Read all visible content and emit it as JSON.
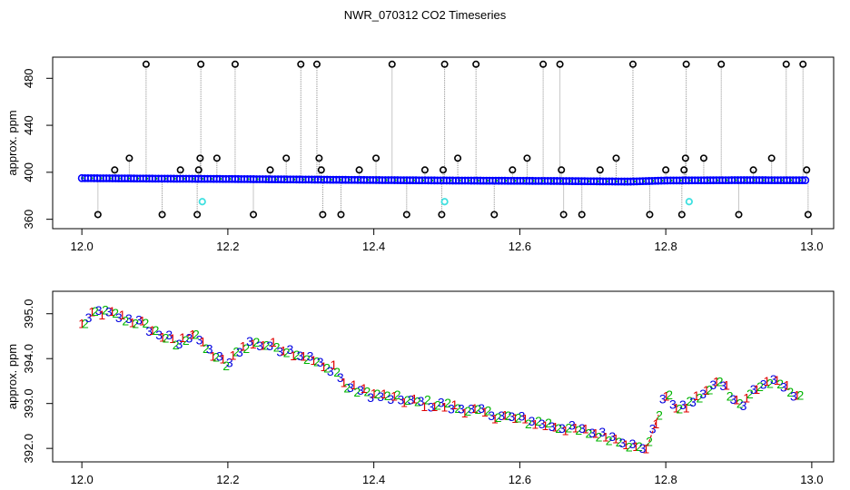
{
  "title": "NWR_070312  CO2 Timeseries",
  "chart_data": [
    {
      "type": "scatter",
      "title": "",
      "xlabel": "",
      "ylabel": "approx. ppm",
      "xlim": [
        11.96,
        13.03
      ],
      "ylim": [
        352,
        498
      ],
      "xticks": [
        12.0,
        12.2,
        12.4,
        12.6,
        12.8,
        13.0
      ],
      "xtick_labels": [
        "12.0",
        "12.2",
        "12.4",
        "12.6",
        "12.8",
        "13.0"
      ],
      "yticks": [
        360,
        400,
        440,
        480
      ],
      "ytick_labels": [
        "360",
        "400",
        "440",
        "480"
      ],
      "grid": false,
      "colors": {
        "main": "#0000ff",
        "inner": "#00b400",
        "outlier": "#000000",
        "calib": "#40e0e0",
        "spike": "#909090"
      },
      "baseline": [
        [
          12.0,
          395.0
        ],
        [
          12.1,
          394.6
        ],
        [
          12.2,
          394.3
        ],
        [
          12.35,
          393.6
        ],
        [
          12.5,
          393.0
        ],
        [
          12.65,
          392.6
        ],
        [
          12.75,
          392.1
        ],
        [
          12.8,
          393.0
        ],
        [
          12.9,
          393.3
        ],
        [
          13.0,
          393.2
        ]
      ],
      "outliers": [
        {
          "x": 12.022,
          "y": 364
        },
        {
          "x": 12.045,
          "y": 402
        },
        {
          "x": 12.065,
          "y": 412
        },
        {
          "x": 12.088,
          "y": 492
        },
        {
          "x": 12.11,
          "y": 364
        },
        {
          "x": 12.135,
          "y": 402
        },
        {
          "x": 12.158,
          "y": 364
        },
        {
          "x": 12.16,
          "y": 402
        },
        {
          "x": 12.162,
          "y": 412
        },
        {
          "x": 12.163,
          "y": 492
        },
        {
          "x": 12.185,
          "y": 412
        },
        {
          "x": 12.21,
          "y": 492
        },
        {
          "x": 12.235,
          "y": 364
        },
        {
          "x": 12.258,
          "y": 402
        },
        {
          "x": 12.28,
          "y": 412
        },
        {
          "x": 12.3,
          "y": 492
        },
        {
          "x": 12.322,
          "y": 492
        },
        {
          "x": 12.325,
          "y": 412
        },
        {
          "x": 12.328,
          "y": 402
        },
        {
          "x": 12.33,
          "y": 364
        },
        {
          "x": 12.355,
          "y": 364
        },
        {
          "x": 12.38,
          "y": 402
        },
        {
          "x": 12.403,
          "y": 412
        },
        {
          "x": 12.425,
          "y": 492
        },
        {
          "x": 12.445,
          "y": 364
        },
        {
          "x": 12.47,
          "y": 402
        },
        {
          "x": 12.493,
          "y": 364
        },
        {
          "x": 12.495,
          "y": 402
        },
        {
          "x": 12.497,
          "y": 492
        },
        {
          "x": 12.515,
          "y": 412
        },
        {
          "x": 12.54,
          "y": 492
        },
        {
          "x": 12.565,
          "y": 364
        },
        {
          "x": 12.59,
          "y": 402
        },
        {
          "x": 12.61,
          "y": 412
        },
        {
          "x": 12.632,
          "y": 492
        },
        {
          "x": 12.655,
          "y": 492
        },
        {
          "x": 12.657,
          "y": 402
        },
        {
          "x": 12.66,
          "y": 364
        },
        {
          "x": 12.685,
          "y": 364
        },
        {
          "x": 12.71,
          "y": 402
        },
        {
          "x": 12.732,
          "y": 412
        },
        {
          "x": 12.755,
          "y": 492
        },
        {
          "x": 12.778,
          "y": 364
        },
        {
          "x": 12.8,
          "y": 402
        },
        {
          "x": 12.822,
          "y": 364
        },
        {
          "x": 12.825,
          "y": 402
        },
        {
          "x": 12.827,
          "y": 412
        },
        {
          "x": 12.828,
          "y": 492
        },
        {
          "x": 12.852,
          "y": 412
        },
        {
          "x": 12.876,
          "y": 492
        },
        {
          "x": 12.9,
          "y": 364
        },
        {
          "x": 12.92,
          "y": 402
        },
        {
          "x": 12.945,
          "y": 412
        },
        {
          "x": 12.965,
          "y": 492
        },
        {
          "x": 12.988,
          "y": 492
        },
        {
          "x": 12.993,
          "y": 402
        },
        {
          "x": 12.995,
          "y": 364
        }
      ],
      "calibration_points": [
        {
          "x": 12.165,
          "y": 375
        },
        {
          "x": 12.497,
          "y": 375
        },
        {
          "x": 12.832,
          "y": 375
        }
      ]
    },
    {
      "type": "scatter",
      "title": "",
      "xlabel": "",
      "ylabel": "approx. ppm",
      "xlim": [
        11.96,
        13.03
      ],
      "ylim": [
        391.7,
        395.5
      ],
      "xticks": [
        12.0,
        12.2,
        12.4,
        12.6,
        12.8,
        13.0
      ],
      "xtick_labels": [
        "12.0",
        "12.2",
        "12.4",
        "12.6",
        "12.8",
        "13.0"
      ],
      "yticks": [
        392.0,
        393.0,
        394.0,
        395.0
      ],
      "ytick_labels": [
        "392.0",
        "393.0",
        "394.0",
        "395.0"
      ],
      "grid": false,
      "markers": [
        "1",
        "2",
        "3"
      ],
      "colors": {
        "marker_1": "#e00000",
        "marker_2": "#00b400",
        "marker_3": "#0000e0",
        "gap_line": "#e00000",
        "link_line": "#404040"
      },
      "series": [
        {
          "x": [
            12.0,
            12.02,
            12.04,
            12.06,
            12.08,
            12.1,
            12.12,
            12.13,
            12.145,
            12.155,
            12.165,
            12.18,
            12.2,
            12.215,
            12.23,
            12.26,
            12.3,
            12.32,
            12.335,
            12.345,
            12.36,
            12.4,
            12.45,
            12.5,
            12.55,
            12.6,
            12.65,
            12.7,
            12.74,
            12.76,
            12.775,
            12.785,
            12.795,
            12.8,
            12.82,
            12.84,
            12.86,
            12.875,
            12.89,
            12.905,
            12.92,
            12.94,
            12.96,
            12.98
          ],
          "y": [
            394.75,
            395.05,
            395.0,
            394.9,
            394.8,
            394.6,
            394.45,
            394.3,
            394.5,
            394.6,
            394.3,
            394.1,
            393.85,
            394.2,
            394.35,
            394.3,
            394.1,
            393.95,
            393.75,
            393.85,
            393.4,
            393.2,
            393.05,
            392.95,
            392.8,
            392.65,
            392.5,
            392.35,
            392.2,
            392.0,
            392.05,
            392.5,
            393.0,
            393.2,
            392.85,
            393.1,
            393.3,
            393.55,
            393.2,
            392.95,
            393.3,
            393.5,
            393.4,
            393.2
          ]
        }
      ]
    }
  ]
}
